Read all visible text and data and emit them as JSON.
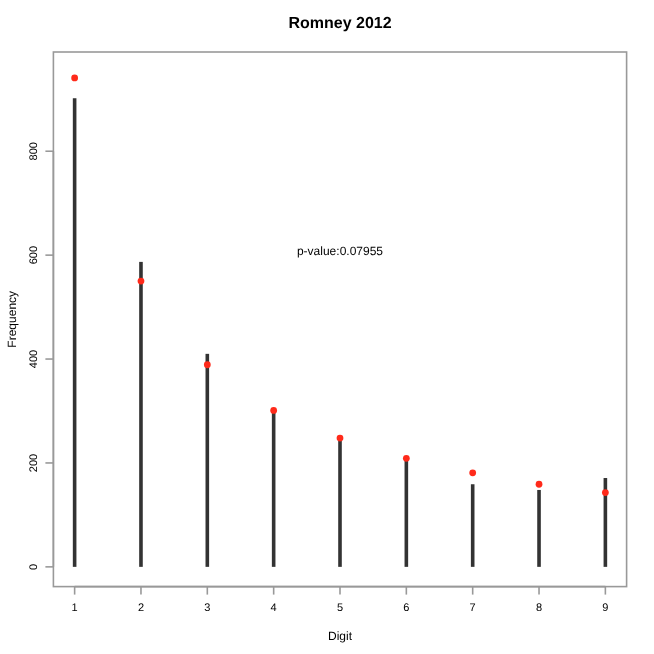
{
  "chart_data": {
    "type": "bar",
    "title": "Romney 2012",
    "xlabel": "Digit",
    "ylabel": "Frequency",
    "x": [
      1,
      2,
      3,
      4,
      5,
      6,
      7,
      8,
      9
    ],
    "series": [
      {
        "color": "#333333",
        "values": [
          902,
          587,
          410,
          302,
          246,
          205,
          159,
          148,
          171
        ]
      },
      {
        "type": "scatter",
        "color": "#ff2a1a",
        "marker": "circle",
        "values": [
          941,
          550,
          389,
          301,
          248,
          209,
          181,
          159,
          143
        ]
      }
    ],
    "xlim": [
      0.68,
      9.32
    ],
    "xticks": [
      1,
      2,
      3,
      4,
      5,
      6,
      7,
      8,
      9
    ],
    "ylim": [
      -38,
      991
    ],
    "yticks": [
      0,
      200,
      400,
      600,
      800
    ],
    "annotations": [
      "p-value:0.07955"
    ],
    "grid": false
  }
}
